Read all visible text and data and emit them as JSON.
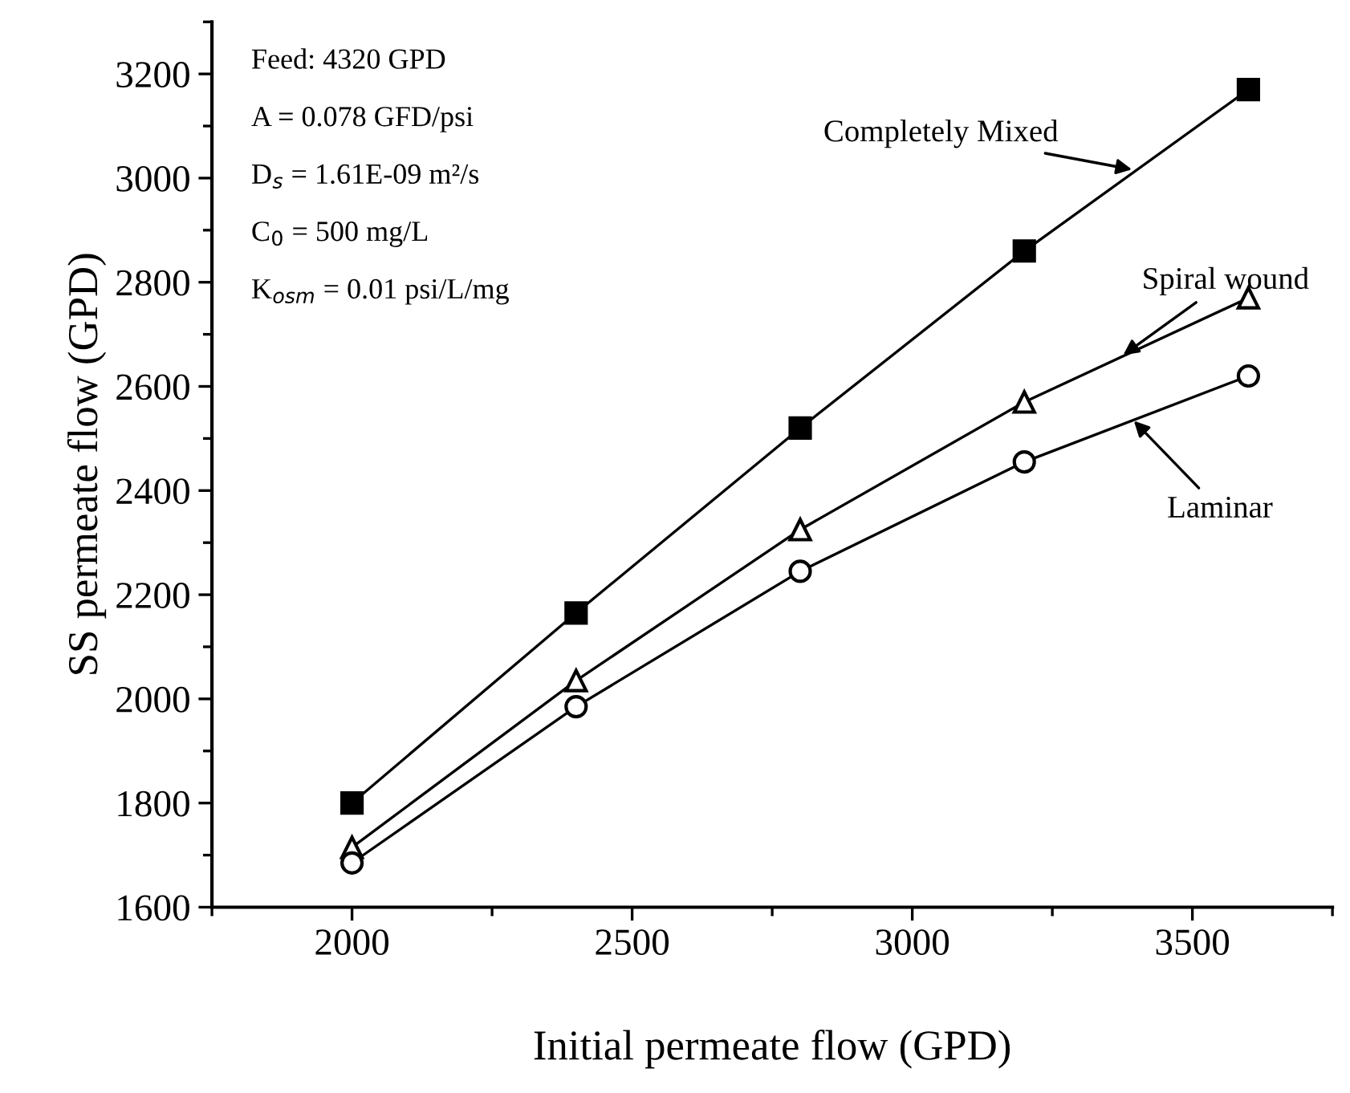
{
  "chart_data": {
    "type": "line",
    "xlabel": "Initial permeate flow (GPD)",
    "ylabel": "SS permeate flow (GPD)",
    "x": [
      2000,
      2400,
      2800,
      3200,
      3600
    ],
    "series": [
      {
        "color": "#000000",
        "marker": "square",
        "values": [
          1800,
          2165,
          2520,
          2860,
          3170
        ]
      },
      {
        "color": "#000000",
        "marker": "triangle",
        "values": [
          1715,
          2035,
          2325,
          2570,
          2770
        ]
      },
      {
        "color": "#000000",
        "marker": "circle",
        "values": [
          1685,
          1985,
          2245,
          2455,
          2620
        ]
      }
    ],
    "xlim": [
      1750,
      3750
    ],
    "xticks": [
      2000,
      2500,
      3000,
      3500
    ],
    "ylim": [
      1600,
      3300
    ],
    "yticks": [
      1600,
      1800,
      2000,
      2200,
      2400,
      2600,
      2800,
      3000,
      3200
    ],
    "grid": false,
    "legend": false,
    "line_style": "solid",
    "annotations": [
      "Feed: 4320 GPD",
      "A = 0.078 GFD/psi",
      "D$_{s}$ = 1.61E-09 m²/s",
      "C$_{0}$ = 500 mg/L",
      "K$_{osm}$ = 0.01 psi/L/mg",
      {
        "text": "Completely Mixed",
        "x": 3400,
        "y": 3015
      },
      {
        "text": "Spiral wound",
        "x": 3370,
        "y": 2655
      },
      {
        "text": "Laminar",
        "x": 3390,
        "y": 2540
      }
    ]
  }
}
